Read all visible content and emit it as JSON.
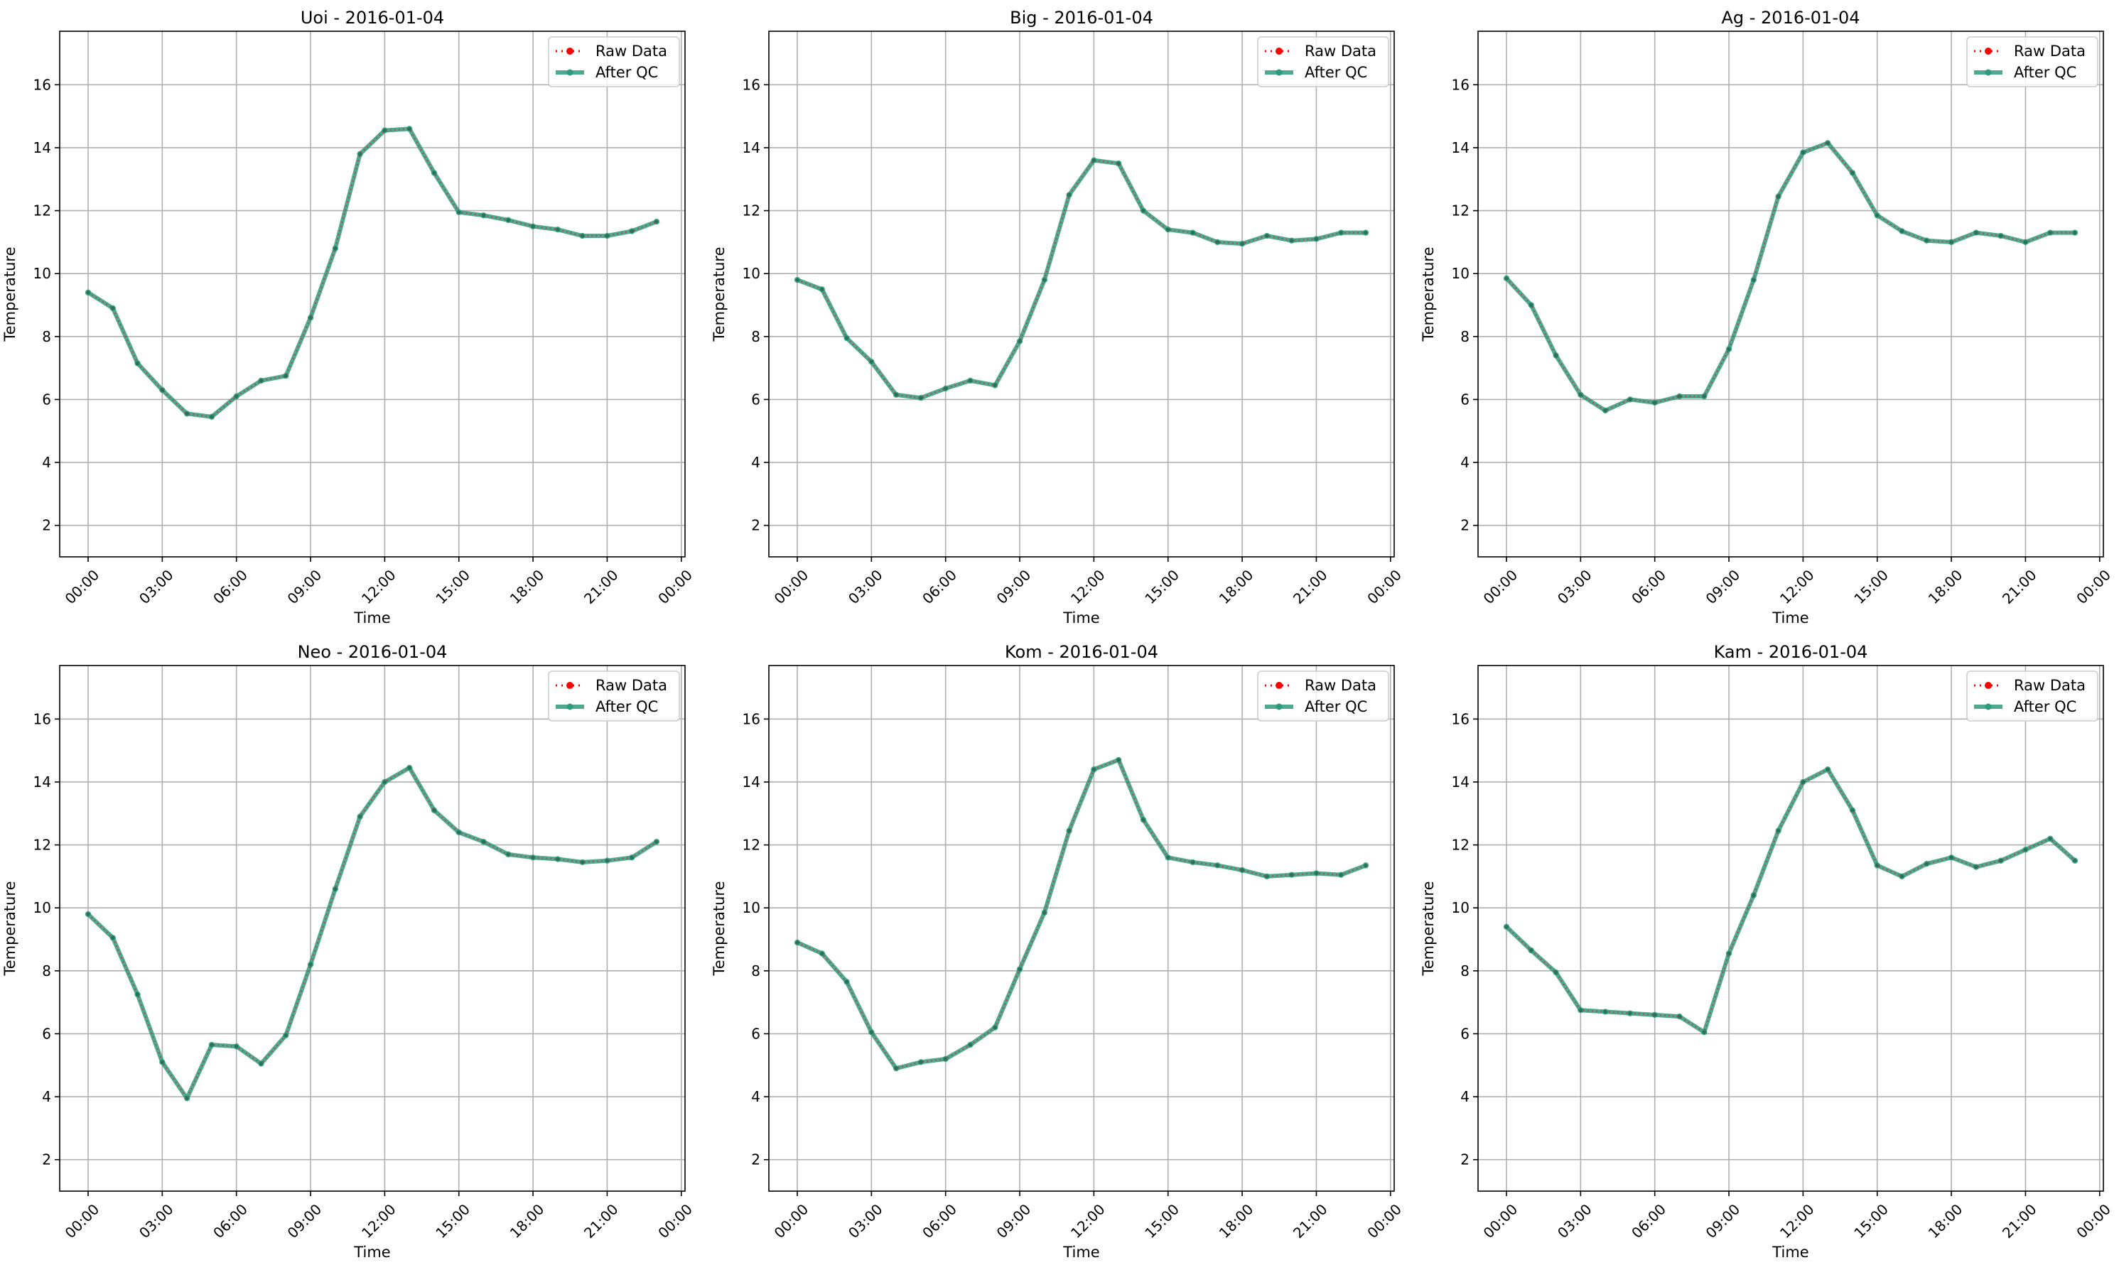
{
  "page": {
    "background": "#ffffff"
  },
  "chart_data": [
    {
      "type": "line",
      "title": "Uoi - 2016-01-04",
      "xlabel": "Time",
      "ylabel": "Temperature",
      "x_ticks": [
        "00:00",
        "03:00",
        "06:00",
        "09:00",
        "12:00",
        "15:00",
        "18:00",
        "21:00",
        "00:00"
      ],
      "y_ticks": [
        2,
        4,
        6,
        8,
        10,
        12,
        14,
        16
      ],
      "xlim": [
        -1.15,
        24.15
      ],
      "ylim": [
        1.0,
        17.7
      ],
      "grid": true,
      "legend_position": "top-right",
      "x": [
        0,
        1,
        2,
        3,
        4,
        5,
        6,
        7,
        8,
        9,
        10,
        11,
        12,
        13,
        14,
        15,
        16,
        17,
        18,
        19,
        20,
        21,
        22,
        23
      ],
      "series": [
        {
          "name": "Raw Data",
          "color": "#ff0000",
          "style": "dotted",
          "values": [
            9.4,
            8.9,
            7.15,
            6.3,
            5.55,
            5.45,
            6.1,
            6.6,
            6.75,
            8.6,
            10.8,
            13.8,
            14.55,
            14.6,
            13.2,
            11.95,
            11.85,
            11.7,
            11.5,
            11.4,
            11.2,
            11.2,
            11.35,
            11.65
          ]
        },
        {
          "name": "After QC",
          "color": "#2f9a7d",
          "style": "solid",
          "values": [
            9.4,
            8.9,
            7.15,
            6.3,
            5.55,
            5.45,
            6.1,
            6.6,
            6.75,
            8.6,
            10.8,
            13.8,
            14.55,
            14.6,
            13.2,
            11.95,
            11.85,
            11.7,
            11.5,
            11.4,
            11.2,
            11.2,
            11.35,
            11.65
          ]
        }
      ]
    },
    {
      "type": "line",
      "title": "Big - 2016-01-04",
      "xlabel": "Time",
      "ylabel": "Temperature",
      "x_ticks": [
        "00:00",
        "03:00",
        "06:00",
        "09:00",
        "12:00",
        "15:00",
        "18:00",
        "21:00",
        "00:00"
      ],
      "y_ticks": [
        2,
        4,
        6,
        8,
        10,
        12,
        14,
        16
      ],
      "xlim": [
        -1.15,
        24.15
      ],
      "ylim": [
        1.0,
        17.7
      ],
      "grid": true,
      "legend_position": "top-right",
      "x": [
        0,
        1,
        2,
        3,
        4,
        5,
        6,
        7,
        8,
        9,
        10,
        11,
        12,
        13,
        14,
        15,
        16,
        17,
        18,
        19,
        20,
        21,
        22,
        23
      ],
      "series": [
        {
          "name": "Raw Data",
          "color": "#ff0000",
          "style": "dotted",
          "values": [
            9.8,
            9.5,
            7.95,
            7.2,
            6.15,
            6.05,
            6.35,
            6.6,
            6.45,
            7.85,
            9.8,
            12.5,
            13.6,
            13.5,
            12.0,
            11.4,
            11.3,
            11.0,
            10.95,
            11.2,
            11.05,
            11.1,
            11.3,
            11.3
          ]
        },
        {
          "name": "After QC",
          "color": "#2f9a7d",
          "style": "solid",
          "values": [
            9.8,
            9.5,
            7.95,
            7.2,
            6.15,
            6.05,
            6.35,
            6.6,
            6.45,
            7.85,
            9.8,
            12.5,
            13.6,
            13.5,
            12.0,
            11.4,
            11.3,
            11.0,
            10.95,
            11.2,
            11.05,
            11.1,
            11.3,
            11.3
          ]
        }
      ]
    },
    {
      "type": "line",
      "title": "Ag - 2016-01-04",
      "xlabel": "Time",
      "ylabel": "Temperature",
      "x_ticks": [
        "00:00",
        "03:00",
        "06:00",
        "09:00",
        "12:00",
        "15:00",
        "18:00",
        "21:00",
        "00:00"
      ],
      "y_ticks": [
        2,
        4,
        6,
        8,
        10,
        12,
        14,
        16
      ],
      "xlim": [
        -1.15,
        24.15
      ],
      "ylim": [
        1.0,
        17.7
      ],
      "grid": true,
      "legend_position": "top-right",
      "x": [
        0,
        1,
        2,
        3,
        4,
        5,
        6,
        7,
        8,
        9,
        10,
        11,
        12,
        13,
        14,
        15,
        16,
        17,
        18,
        19,
        20,
        21,
        22,
        23
      ],
      "series": [
        {
          "name": "Raw Data",
          "color": "#ff0000",
          "style": "dotted",
          "values": [
            9.85,
            9.0,
            7.4,
            6.15,
            5.65,
            6.0,
            5.9,
            6.1,
            6.1,
            7.6,
            9.8,
            12.45,
            13.85,
            14.15,
            13.2,
            11.85,
            11.35,
            11.05,
            11.0,
            11.3,
            11.2,
            11.0,
            11.3,
            11.3
          ]
        },
        {
          "name": "After QC",
          "color": "#2f9a7d",
          "style": "solid",
          "values": [
            9.85,
            9.0,
            7.4,
            6.15,
            5.65,
            6.0,
            5.9,
            6.1,
            6.1,
            7.6,
            9.8,
            12.45,
            13.85,
            14.15,
            13.2,
            11.85,
            11.35,
            11.05,
            11.0,
            11.3,
            11.2,
            11.0,
            11.3,
            11.3
          ]
        }
      ]
    },
    {
      "type": "line",
      "title": "Neo - 2016-01-04",
      "xlabel": "Time",
      "ylabel": "Temperature",
      "x_ticks": [
        "00:00",
        "03:00",
        "06:00",
        "09:00",
        "12:00",
        "15:00",
        "18:00",
        "21:00",
        "00:00"
      ],
      "y_ticks": [
        2,
        4,
        6,
        8,
        10,
        12,
        14,
        16
      ],
      "xlim": [
        -1.15,
        24.15
      ],
      "ylim": [
        1.0,
        17.7
      ],
      "grid": true,
      "legend_position": "top-right",
      "x": [
        0,
        1,
        2,
        3,
        4,
        5,
        6,
        7,
        8,
        9,
        10,
        11,
        12,
        13,
        14,
        15,
        16,
        17,
        18,
        19,
        20,
        21,
        22,
        23
      ],
      "series": [
        {
          "name": "Raw Data",
          "color": "#ff0000",
          "style": "dotted",
          "values": [
            9.8,
            9.05,
            7.25,
            5.1,
            3.95,
            5.65,
            5.6,
            5.05,
            5.95,
            8.2,
            10.6,
            12.9,
            14.0,
            14.45,
            13.1,
            12.4,
            12.1,
            11.7,
            11.6,
            11.55,
            11.45,
            11.5,
            11.6,
            12.1
          ]
        },
        {
          "name": "After QC",
          "color": "#2f9a7d",
          "style": "solid",
          "values": [
            9.8,
            9.05,
            7.25,
            5.1,
            3.95,
            5.65,
            5.6,
            5.05,
            5.95,
            8.2,
            10.6,
            12.9,
            14.0,
            14.45,
            13.1,
            12.4,
            12.1,
            11.7,
            11.6,
            11.55,
            11.45,
            11.5,
            11.6,
            12.1
          ]
        }
      ]
    },
    {
      "type": "line",
      "title": "Kom - 2016-01-04",
      "xlabel": "Time",
      "ylabel": "Temperature",
      "x_ticks": [
        "00:00",
        "03:00",
        "06:00",
        "09:00",
        "12:00",
        "15:00",
        "18:00",
        "21:00",
        "00:00"
      ],
      "y_ticks": [
        2,
        4,
        6,
        8,
        10,
        12,
        14,
        16
      ],
      "xlim": [
        -1.15,
        24.15
      ],
      "ylim": [
        1.0,
        17.7
      ],
      "grid": true,
      "legend_position": "top-right",
      "x": [
        0,
        1,
        2,
        3,
        4,
        5,
        6,
        7,
        8,
        9,
        10,
        11,
        12,
        13,
        14,
        15,
        16,
        17,
        18,
        19,
        20,
        21,
        22,
        23
      ],
      "series": [
        {
          "name": "Raw Data",
          "color": "#ff0000",
          "style": "dotted",
          "values": [
            8.9,
            8.55,
            7.65,
            6.05,
            4.9,
            5.1,
            5.2,
            5.65,
            6.2,
            8.05,
            9.85,
            12.45,
            14.4,
            14.7,
            12.8,
            11.6,
            11.45,
            11.35,
            11.2,
            11.0,
            11.05,
            11.1,
            11.05,
            11.35
          ]
        },
        {
          "name": "After QC",
          "color": "#2f9a7d",
          "style": "solid",
          "values": [
            8.9,
            8.55,
            7.65,
            6.05,
            4.9,
            5.1,
            5.2,
            5.65,
            6.2,
            8.05,
            9.85,
            12.45,
            14.4,
            14.7,
            12.8,
            11.6,
            11.45,
            11.35,
            11.2,
            11.0,
            11.05,
            11.1,
            11.05,
            11.35
          ]
        }
      ]
    },
    {
      "type": "line",
      "title": "Kam - 2016-01-04",
      "xlabel": "Time",
      "ylabel": "Temperature",
      "x_ticks": [
        "00:00",
        "03:00",
        "06:00",
        "09:00",
        "12:00",
        "15:00",
        "18:00",
        "21:00",
        "00:00"
      ],
      "y_ticks": [
        2,
        4,
        6,
        8,
        10,
        12,
        14,
        16
      ],
      "xlim": [
        -1.15,
        24.15
      ],
      "ylim": [
        1.0,
        17.7
      ],
      "grid": true,
      "legend_position": "top-right",
      "x": [
        0,
        1,
        2,
        3,
        4,
        5,
        6,
        7,
        8,
        9,
        10,
        11,
        12,
        13,
        14,
        15,
        16,
        17,
        18,
        19,
        20,
        21,
        22,
        23
      ],
      "series": [
        {
          "name": "Raw Data",
          "color": "#ff0000",
          "style": "dotted",
          "values": [
            9.4,
            8.65,
            7.95,
            6.75,
            6.7,
            6.65,
            6.6,
            6.55,
            6.05,
            8.55,
            10.4,
            12.45,
            14.0,
            14.4,
            13.1,
            11.35,
            11.0,
            11.4,
            11.6,
            11.3,
            11.5,
            11.85,
            12.2,
            11.5
          ]
        },
        {
          "name": "After QC",
          "color": "#2f9a7d",
          "style": "solid",
          "values": [
            9.4,
            8.65,
            7.95,
            6.75,
            6.7,
            6.65,
            6.6,
            6.55,
            6.05,
            8.55,
            10.4,
            12.45,
            14.0,
            14.4,
            13.1,
            11.35,
            11.0,
            11.4,
            11.6,
            11.3,
            11.5,
            11.85,
            12.2,
            11.5
          ]
        }
      ]
    }
  ]
}
